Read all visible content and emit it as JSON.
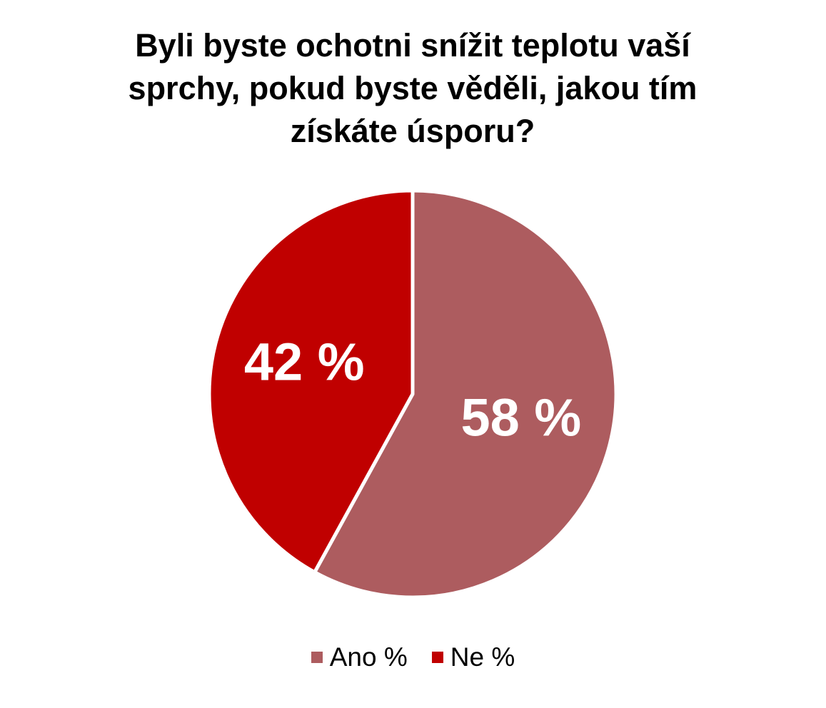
{
  "chart_data": {
    "type": "pie",
    "title": "Byli byste ochotni snížit teplotu vaší sprchy, pokud byste věděli, jakou tím získáte úsporu?",
    "categories": [
      "Ano %",
      "Ne %"
    ],
    "values": [
      58,
      42
    ],
    "value_labels": [
      "58 %",
      "42 %"
    ],
    "colors": [
      "#ad5c5f",
      "#c00000"
    ],
    "legend": "bottom"
  }
}
